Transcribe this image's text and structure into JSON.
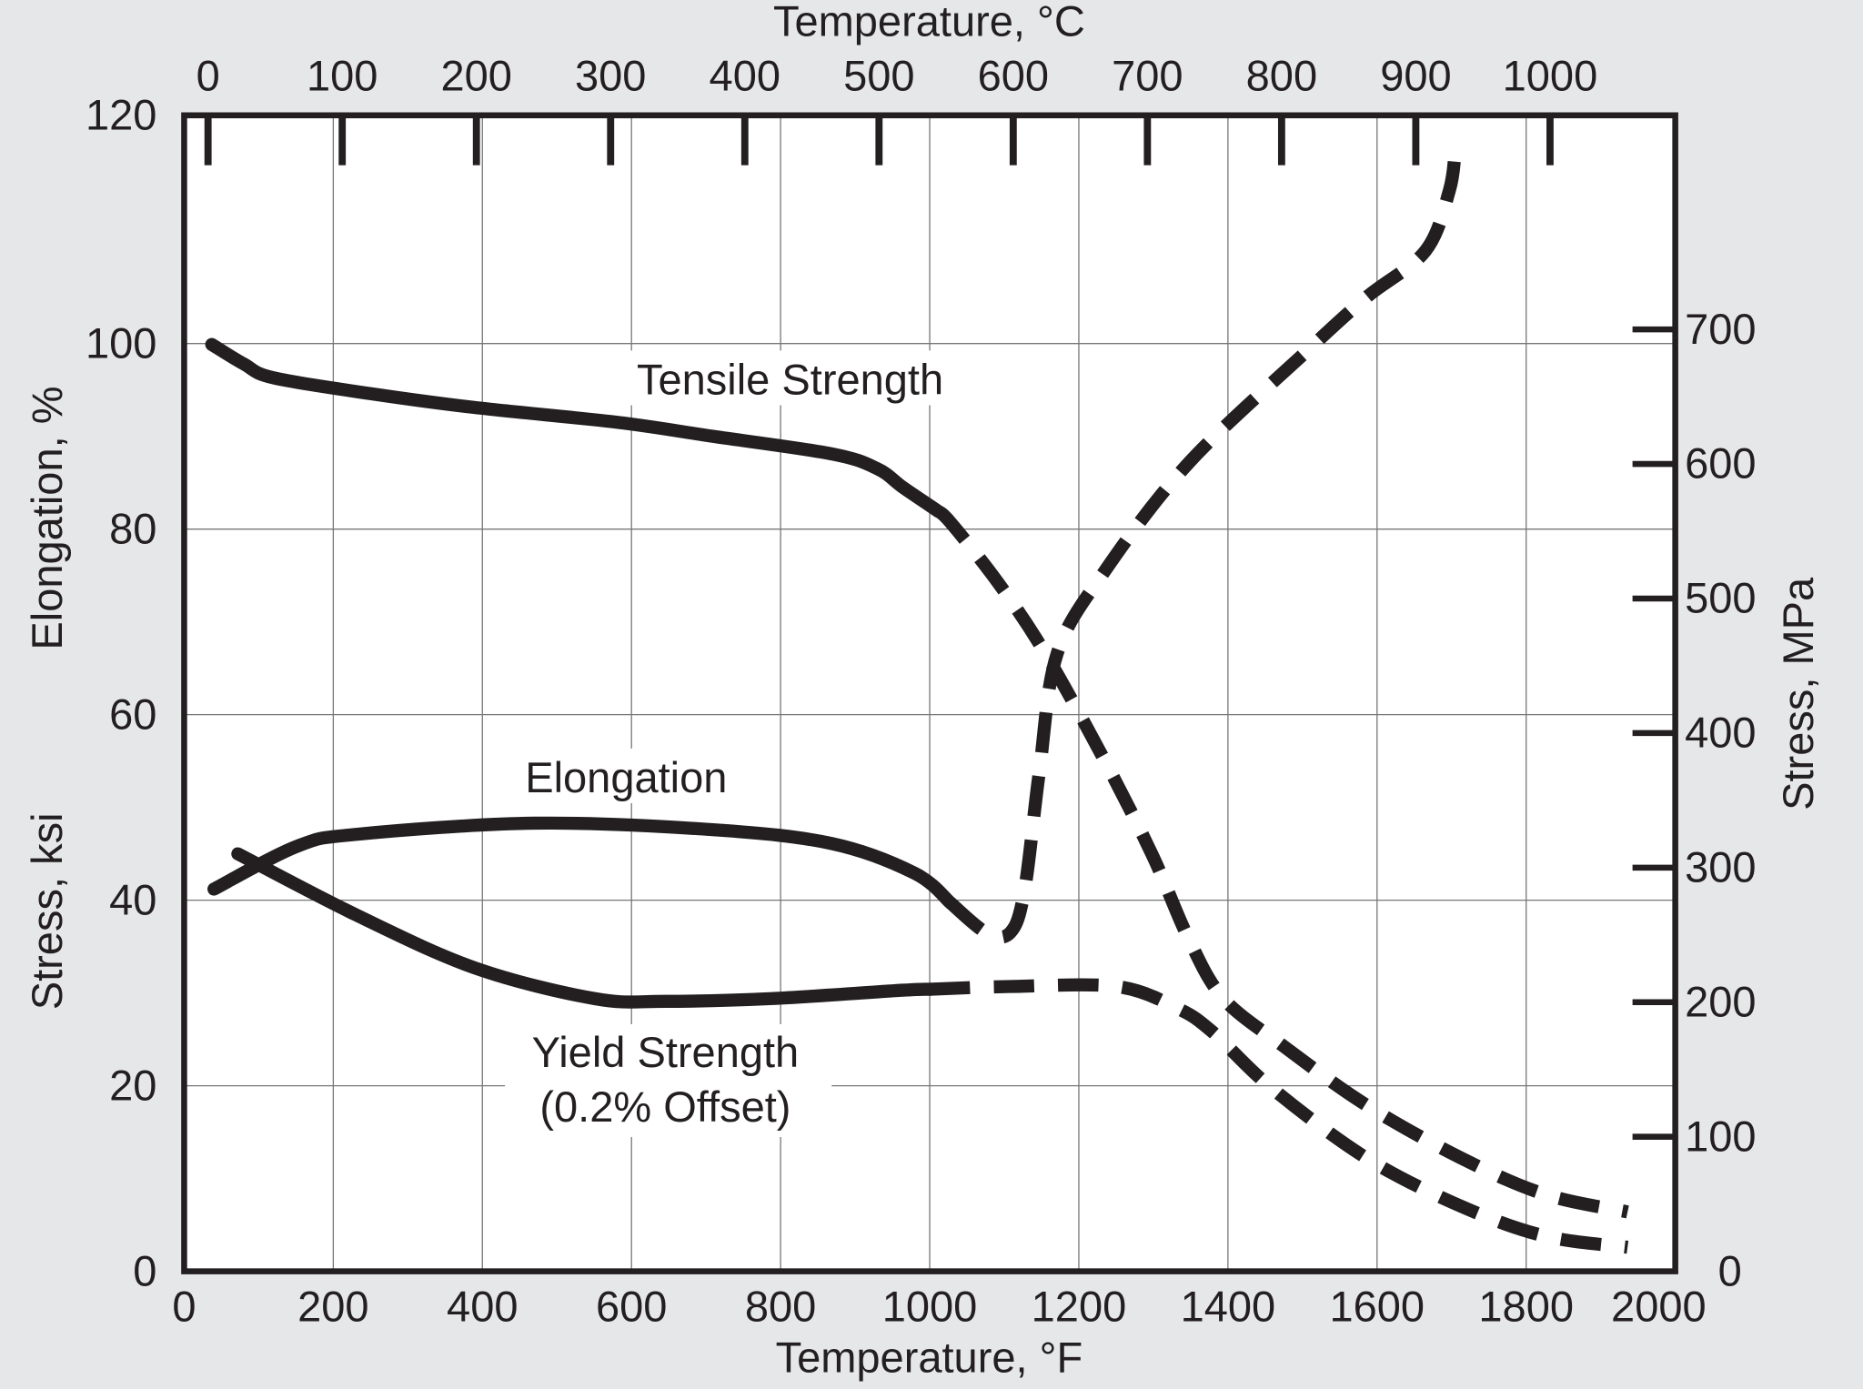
{
  "chart_data": {
    "type": "line",
    "title": "",
    "xlabel": "Temperature, °F",
    "x2label": "Temperature, °C",
    "ylabel_upper": "Elongation, %",
    "ylabel_lower": "Stress, ksi",
    "y2label": "Stress, MPa",
    "xlim": [
      0,
      2000
    ],
    "ylim": [
      0,
      124.6
    ],
    "grid": true,
    "x_ticks": [
      0,
      200,
      400,
      600,
      800,
      1000,
      1200,
      1400,
      1600,
      1800,
      2000
    ],
    "x2_ticks": [
      0,
      100,
      200,
      300,
      400,
      500,
      600,
      700,
      800,
      900,
      1000
    ],
    "y_ticks": [
      0,
      20,
      40,
      60,
      80,
      100,
      120
    ],
    "y2_ticks": [
      0,
      100,
      200,
      300,
      400,
      500,
      600,
      700
    ],
    "colors": {
      "background": "#e6e7e8",
      "plot": "#ffffff",
      "ink": "#231f20",
      "grid": "#777777"
    },
    "annotations": {
      "tensile": "Tensile Strength",
      "elongation": "Elongation",
      "yield_1": "Yield Strength",
      "yield_2": "(0.2% Offset)"
    },
    "series": [
      {
        "name": "Tensile Strength",
        "unit": "ksi",
        "solid": [
          [
            37,
            99.9
          ],
          [
            80,
            97.8
          ],
          [
            120,
            96.3
          ],
          [
            250,
            94.6
          ],
          [
            390,
            93.1
          ],
          [
            582,
            91.5
          ],
          [
            709,
            90
          ],
          [
            869,
            88.1
          ],
          [
            930,
            86.5
          ],
          [
            964,
            84.5
          ],
          [
            1010,
            82
          ]
        ],
        "dashed": [
          [
            1010,
            82
          ],
          [
            1028,
            80.7
          ],
          [
            1091,
            74.3
          ],
          [
            1155,
            66.6
          ],
          [
            1235,
            55
          ],
          [
            1299,
            44.8
          ],
          [
            1347,
            35.9
          ],
          [
            1394,
            29.4
          ],
          [
            1474,
            24.3
          ],
          [
            1586,
            17.9
          ],
          [
            1713,
            12.2
          ],
          [
            1825,
            8.3
          ],
          [
            1936,
            6.4
          ]
        ]
      },
      {
        "name": "Yield Strength (0.2% Offset)",
        "unit": "ksi",
        "solid": [
          [
            72,
            45
          ],
          [
            231,
            38.4
          ],
          [
            390,
            32.7
          ],
          [
            550,
            29.4
          ],
          [
            645,
            29.1
          ],
          [
            789,
            29.4
          ],
          [
            964,
            30.3
          ],
          [
            1000,
            30.4
          ]
        ],
        "dashed": [
          [
            1000,
            30.4
          ],
          [
            1108,
            30.7
          ],
          [
            1251,
            30.7
          ],
          [
            1331,
            28.4
          ],
          [
            1378,
            25.9
          ],
          [
            1458,
            19.8
          ],
          [
            1586,
            12.2
          ],
          [
            1713,
            7.0
          ],
          [
            1825,
            3.8
          ],
          [
            1936,
            2.6
          ]
        ]
      },
      {
        "name": "Elongation",
        "unit": "%",
        "solid": [
          [
            40,
            41.2
          ],
          [
            151,
            45.8
          ],
          [
            231,
            47.1
          ],
          [
            470,
            48.3
          ],
          [
            709,
            47.6
          ],
          [
            869,
            46.1
          ],
          [
            980,
            42.9
          ],
          [
            1028,
            39.7
          ]
        ],
        "dashed": [
          [
            1028,
            39.7
          ],
          [
            1076,
            36.5
          ],
          [
            1108,
            36.5
          ],
          [
            1127,
            41
          ],
          [
            1147,
            53.8
          ],
          [
            1171,
            66.6
          ],
          [
            1235,
            75.5
          ],
          [
            1347,
            87.1
          ],
          [
            1506,
            99.2
          ],
          [
            1586,
            105
          ],
          [
            1665,
            110
          ],
          [
            1697,
            116.5
          ],
          [
            1705,
            121
          ]
        ]
      }
    ]
  }
}
